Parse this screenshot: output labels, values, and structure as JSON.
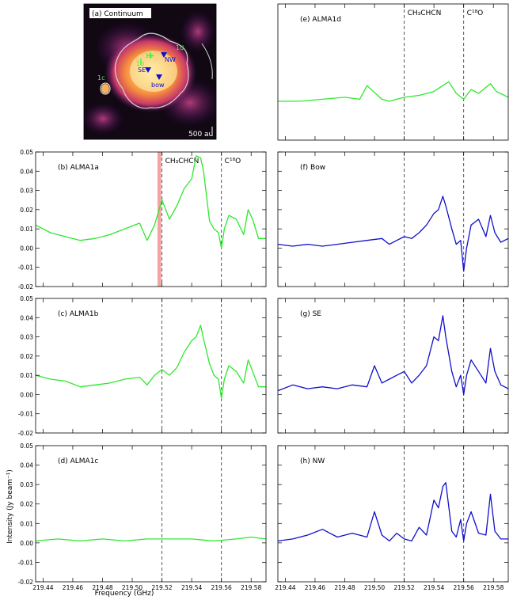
{
  "figure": {
    "ylabel": "Intensity (Jy beam⁻¹)",
    "xlabel": "Frequency (GHz)",
    "colors": {
      "green": "#2ee82e",
      "blue": "#1010cc",
      "vline": "#444444",
      "shade": "#f4a3a3"
    }
  },
  "continuum": {
    "label": "(a) Continuum",
    "scale_label": "500 au",
    "markers": [
      {
        "label": "1a"
      },
      {
        "label": "1b"
      },
      {
        "label": "1c"
      },
      {
        "label": "1d"
      },
      {
        "label": "SE"
      },
      {
        "label": "NW"
      },
      {
        "label": "bow"
      }
    ]
  },
  "chart_data": {
    "type": "line",
    "x_range": [
      219.435,
      219.59
    ],
    "y_range": [
      -0.02,
      0.05
    ],
    "x_ticks": [
      "219.44",
      "219.46",
      "219.48",
      "219.50",
      "219.52",
      "219.54",
      "219.56",
      "219.58"
    ],
    "x_tick_values": [
      219.44,
      219.46,
      219.48,
      219.5,
      219.52,
      219.54,
      219.56,
      219.58
    ],
    "y_ticks": [
      "0.05",
      "0.04",
      "0.03",
      "0.02",
      "0.01",
      "0.00",
      "-0.01",
      "-0.02"
    ],
    "y_tick_values": [
      0.05,
      0.04,
      0.03,
      0.02,
      0.01,
      0.0,
      -0.01,
      -0.02
    ],
    "lines": [
      {
        "label": "CH₃CHCN",
        "x": 219.52
      },
      {
        "label": "C¹⁸O",
        "x": 219.56
      }
    ],
    "shaded_band": [
      219.517,
      219.5195
    ],
    "panels": [
      {
        "id": "b",
        "label": "(b) ALMA1a",
        "color": "green",
        "x": [
          219.435,
          219.445,
          219.455,
          219.465,
          219.475,
          219.485,
          219.495,
          219.505,
          219.51,
          219.515,
          219.52,
          219.525,
          219.53,
          219.535,
          219.54,
          219.543,
          219.546,
          219.548,
          219.552,
          219.555,
          219.558,
          219.56,
          219.562,
          219.565,
          219.57,
          219.575,
          219.578,
          219.581,
          219.585,
          219.59
        ],
        "y": [
          0.012,
          0.008,
          0.006,
          0.004,
          0.005,
          0.007,
          0.01,
          0.013,
          0.004,
          0.012,
          0.025,
          0.015,
          0.022,
          0.031,
          0.036,
          0.048,
          0.047,
          0.04,
          0.014,
          0.01,
          0.008,
          0.0,
          0.01,
          0.017,
          0.015,
          0.007,
          0.02,
          0.015,
          0.005,
          0.005
        ]
      },
      {
        "id": "c",
        "label": "(c) ALMA1b",
        "color": "green",
        "x": [
          219.435,
          219.445,
          219.455,
          219.465,
          219.475,
          219.485,
          219.495,
          219.505,
          219.51,
          219.515,
          219.52,
          219.525,
          219.53,
          219.535,
          219.54,
          219.543,
          219.546,
          219.548,
          219.552,
          219.555,
          219.558,
          219.56,
          219.562,
          219.565,
          219.57,
          219.575,
          219.578,
          219.581,
          219.585,
          219.59
        ],
        "y": [
          0.01,
          0.008,
          0.007,
          0.004,
          0.005,
          0.006,
          0.008,
          0.009,
          0.005,
          0.01,
          0.013,
          0.01,
          0.014,
          0.022,
          0.028,
          0.03,
          0.036,
          0.029,
          0.016,
          0.01,
          0.008,
          -0.002,
          0.008,
          0.015,
          0.012,
          0.006,
          0.018,
          0.012,
          0.004,
          0.004
        ]
      },
      {
        "id": "d",
        "label": "(d) ALMA1c",
        "color": "green",
        "x": [
          219.435,
          219.45,
          219.465,
          219.48,
          219.495,
          219.51,
          219.525,
          219.54,
          219.555,
          219.57,
          219.58,
          219.59
        ],
        "y": [
          0.001,
          0.002,
          0.001,
          0.002,
          0.001,
          0.002,
          0.002,
          0.002,
          0.001,
          0.002,
          0.003,
          0.002
        ]
      },
      {
        "id": "e",
        "label": "(e) ALMA1d",
        "color": "green",
        "x": [
          219.435,
          219.45,
          219.465,
          219.48,
          219.49,
          219.495,
          219.505,
          219.51,
          219.52,
          219.53,
          219.54,
          219.548,
          219.55,
          219.555,
          219.56,
          219.565,
          219.57,
          219.578,
          219.582,
          219.59
        ],
        "y": [
          0.0,
          0.0,
          0.001,
          0.002,
          0.001,
          0.008,
          0.001,
          0.0,
          0.002,
          0.003,
          0.005,
          0.009,
          0.01,
          0.004,
          0.001,
          0.006,
          0.004,
          0.009,
          0.005,
          0.002
        ]
      },
      {
        "id": "f",
        "label": "(f) Bow",
        "color": "blue",
        "x": [
          219.435,
          219.445,
          219.455,
          219.465,
          219.475,
          219.485,
          219.495,
          219.505,
          219.51,
          219.515,
          219.52,
          219.525,
          219.53,
          219.535,
          219.54,
          219.543,
          219.546,
          219.548,
          219.552,
          219.555,
          219.558,
          219.56,
          219.562,
          219.565,
          219.57,
          219.575,
          219.578,
          219.581,
          219.585,
          219.59
        ],
        "y": [
          0.002,
          0.001,
          0.002,
          0.001,
          0.002,
          0.003,
          0.004,
          0.005,
          0.002,
          0.004,
          0.006,
          0.005,
          0.008,
          0.012,
          0.018,
          0.02,
          0.027,
          0.022,
          0.01,
          0.002,
          0.004,
          -0.012,
          0.0,
          0.012,
          0.015,
          0.006,
          0.017,
          0.008,
          0.003,
          0.005
        ]
      },
      {
        "id": "g",
        "label": "(g) SE",
        "color": "blue",
        "x": [
          219.435,
          219.445,
          219.455,
          219.465,
          219.475,
          219.485,
          219.495,
          219.5,
          219.505,
          219.51,
          219.515,
          219.52,
          219.525,
          219.53,
          219.535,
          219.54,
          219.543,
          219.546,
          219.548,
          219.552,
          219.555,
          219.558,
          219.56,
          219.562,
          219.565,
          219.57,
          219.575,
          219.578,
          219.581,
          219.585,
          219.59
        ],
        "y": [
          0.002,
          0.005,
          0.003,
          0.004,
          0.003,
          0.005,
          0.004,
          0.015,
          0.006,
          0.008,
          0.01,
          0.012,
          0.006,
          0.01,
          0.015,
          0.03,
          0.028,
          0.041,
          0.03,
          0.012,
          0.004,
          0.01,
          0.0,
          0.01,
          0.018,
          0.012,
          0.006,
          0.024,
          0.012,
          0.005,
          0.003
        ]
      },
      {
        "id": "h",
        "label": "(h) NW",
        "color": "blue",
        "x": [
          219.435,
          219.445,
          219.455,
          219.465,
          219.475,
          219.485,
          219.495,
          219.5,
          219.505,
          219.51,
          219.515,
          219.52,
          219.525,
          219.53,
          219.535,
          219.54,
          219.543,
          219.546,
          219.548,
          219.552,
          219.555,
          219.558,
          219.56,
          219.562,
          219.565,
          219.57,
          219.575,
          219.578,
          219.581,
          219.585,
          219.59
        ],
        "y": [
          0.001,
          0.002,
          0.004,
          0.007,
          0.003,
          0.005,
          0.003,
          0.016,
          0.004,
          0.001,
          0.005,
          0.002,
          0.001,
          0.008,
          0.004,
          0.022,
          0.018,
          0.029,
          0.031,
          0.006,
          0.003,
          0.012,
          0.001,
          0.01,
          0.016,
          0.005,
          0.004,
          0.025,
          0.006,
          0.002,
          0.002
        ]
      }
    ]
  }
}
